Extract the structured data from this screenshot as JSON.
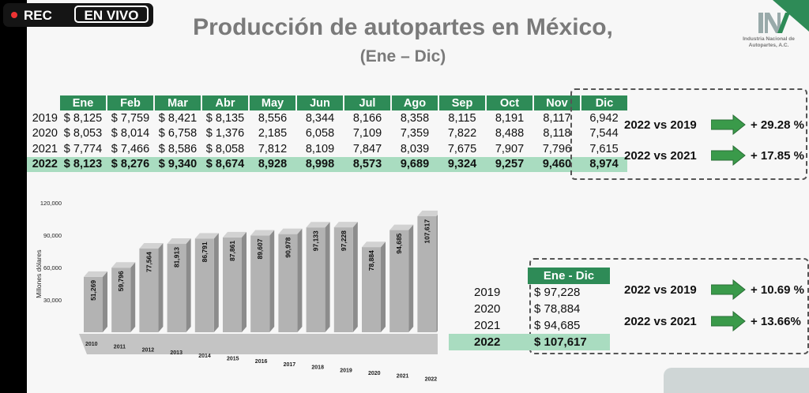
{
  "overlay": {
    "rec_label": "REC",
    "live_label": "EN VIVO"
  },
  "slide": {
    "title": "Producción de autopartes en México,",
    "subtitle": "(Ene – Dic)",
    "logo": {
      "initials": "INA",
      "name": "Industria Nacional de Autopartes, A.C."
    }
  },
  "monthly_table": {
    "headers": [
      "Ene",
      "Feb",
      "Mar",
      "Abr",
      "May",
      "Jun",
      "Jul",
      "Ago",
      "Sep",
      "Oct",
      "Nov",
      "Dic"
    ],
    "rows": [
      {
        "year": "2019",
        "values": [
          "$ 8,125",
          "$ 7,759",
          "$ 8,421",
          "$ 8,135",
          "8,556",
          "8,344",
          "8,166",
          "8,358",
          "8,115",
          "8,191",
          "8,117",
          "6,942"
        ]
      },
      {
        "year": "2020",
        "values": [
          "$ 8,053",
          "$ 8,014",
          "$ 6,758",
          "$ 1,376",
          "2,185",
          "6,058",
          "7,109",
          "7,359",
          "7,822",
          "8,488",
          "8,118",
          "7,544"
        ]
      },
      {
        "year": "2021",
        "values": [
          "$ 7,774",
          "$ 7,466",
          "$ 8,586",
          "$ 8,058",
          "7,812",
          "8,109",
          "7,847",
          "8,039",
          "7,675",
          "7,907",
          "7,796",
          "7,615"
        ]
      },
      {
        "year": "2022",
        "values": [
          "$ 8,123",
          "$ 8,276",
          "$ 9,340",
          "$ 8,674",
          "8,928",
          "8,998",
          "8,573",
          "9,689",
          "9,324",
          "9,257",
          "9,460",
          "8,974"
        ]
      }
    ],
    "comparisons": [
      {
        "label": "2022 vs 2019",
        "value": "+ 29.28 %"
      },
      {
        "label": "2022 vs 2021",
        "value": "+ 17.85 %"
      }
    ]
  },
  "totals_table": {
    "header": "Ene - Dic",
    "rows": [
      {
        "year": "2019",
        "value": "$ 97,228"
      },
      {
        "year": "2020",
        "value": "$ 78,884"
      },
      {
        "year": "2021",
        "value": "$ 94,685"
      },
      {
        "year": "2022",
        "value": "$ 107,617"
      }
    ],
    "comparisons": [
      {
        "label": "2022 vs 2019",
        "value": "+ 10.69 %"
      },
      {
        "label": "2022 vs 2021",
        "value": "+ 13.66%"
      }
    ]
  },
  "chart_data": {
    "type": "bar",
    "ylabel": "Millones dólares",
    "ylim": [
      0,
      120000
    ],
    "yticks": [
      "120,000",
      "90,000",
      "60,000",
      "30,000"
    ],
    "ytick_values": [
      120000,
      90000,
      60000,
      30000
    ],
    "categories": [
      "2010",
      "2011",
      "2012",
      "2013",
      "2014",
      "2015",
      "2016",
      "2017",
      "2018",
      "2019",
      "2020",
      "2021",
      "2022"
    ],
    "values": [
      51269,
      59796,
      77564,
      81913,
      86791,
      87861,
      89607,
      90978,
      97133,
      97228,
      78884,
      94685,
      107617
    ],
    "labels": [
      "51,269",
      "59,796",
      "77,564",
      "81,913",
      "86,791",
      "87,861",
      "89,607",
      "90,978",
      "97,133",
      "97,228",
      "78,884",
      "94,685",
      "107,617"
    ],
    "colors": {
      "bar_front": "#b3b3b3",
      "bar_side": "#8c8c8c",
      "bar_top": "#d2d2d2",
      "floor": "#c4c4c4"
    }
  },
  "colors": {
    "header_green": "#2e8b57",
    "highlight_green": "#a9dcc0",
    "arrow_green": "#3a9a4a"
  }
}
